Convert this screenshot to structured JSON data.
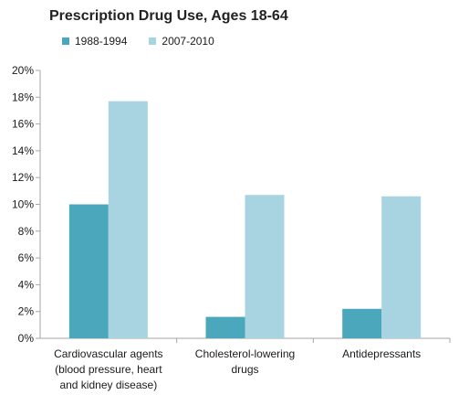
{
  "chart_data": {
    "type": "bar",
    "title": "Prescription Drug Use, Ages 18-64",
    "xlabel": "",
    "ylabel": "",
    "ylim": [
      0,
      20
    ],
    "y_ticks": [
      "0%",
      "2%",
      "4%",
      "6%",
      "8%",
      "10%",
      "12%",
      "14%",
      "16%",
      "18%",
      "20%"
    ],
    "y_tick_values": [
      0,
      2,
      4,
      6,
      8,
      10,
      12,
      14,
      16,
      18,
      20
    ],
    "grid": false,
    "legend_position": "top-left",
    "categories": [
      [
        "Cardiovascular agents",
        "(blood pressure, heart",
        "and kidney disease)"
      ],
      [
        "Cholesterol-lowering",
        "drugs"
      ],
      [
        "Antidepressants"
      ]
    ],
    "series": [
      {
        "name": "1988-1994",
        "color": "#4ba8bc",
        "values": [
          10.0,
          1.6,
          2.2
        ]
      },
      {
        "name": "2007-2010",
        "color": "#a8d3e0",
        "values": [
          17.7,
          10.7,
          10.6
        ]
      }
    ]
  }
}
